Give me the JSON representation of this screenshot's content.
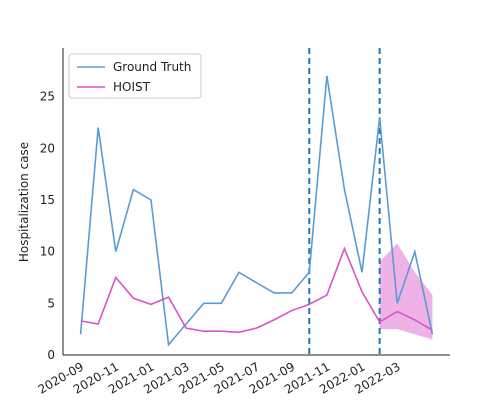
{
  "chart_data": {
    "type": "line",
    "ylabel": "Hospitalization case",
    "x": [
      "2020-09",
      "2020-10",
      "2020-11",
      "2020-12",
      "2021-01",
      "2021-02",
      "2021-03",
      "2021-04",
      "2021-05",
      "2021-06",
      "2021-07",
      "2021-08",
      "2021-09",
      "2021-10",
      "2021-11",
      "2021-12",
      "2022-01",
      "2022-02",
      "2022-03",
      "2022-04",
      "2022-05"
    ],
    "series": [
      {
        "name": "Ground Truth",
        "color": "#5b9bd5",
        "values": [
          2,
          22,
          10,
          16,
          15,
          1,
          3,
          5,
          5,
          8,
          7,
          6,
          6,
          8,
          27,
          16,
          8,
          23,
          5,
          10,
          2
        ]
      },
      {
        "name": "HOIST",
        "color": "#d855c6",
        "values": [
          3.3,
          3,
          7.5,
          5.5,
          4.9,
          5.6,
          2.6,
          2.3,
          2.3,
          2.2,
          2.6,
          3.4,
          4.3,
          4.9,
          5.8,
          10.3,
          6.1,
          3.2,
          4.2,
          3.4,
          2.4
        ]
      }
    ],
    "interval": {
      "x": [
        "2022-02",
        "2022-03",
        "2022-04",
        "2022-05"
      ],
      "lower": [
        2.5,
        2.5,
        2,
        1.5
      ],
      "upper": [
        9,
        10.8,
        8,
        5.8
      ],
      "color": "#eeb2e6"
    },
    "vlines": [
      "2021-10",
      "2022-02"
    ],
    "vline_color": "#1f77b4",
    "xlim": [
      "2020-08",
      "2022-06"
    ],
    "xticks": [
      "2020-09",
      "2020-11",
      "2021-01",
      "2021-03",
      "2021-05",
      "2021-07",
      "2021-09",
      "2021-11",
      "2022-01",
      "2022-03"
    ],
    "ylim": [
      0,
      29.7
    ],
    "yticks": [
      0,
      5,
      10,
      15,
      20,
      25
    ],
    "legend": "upper left"
  }
}
